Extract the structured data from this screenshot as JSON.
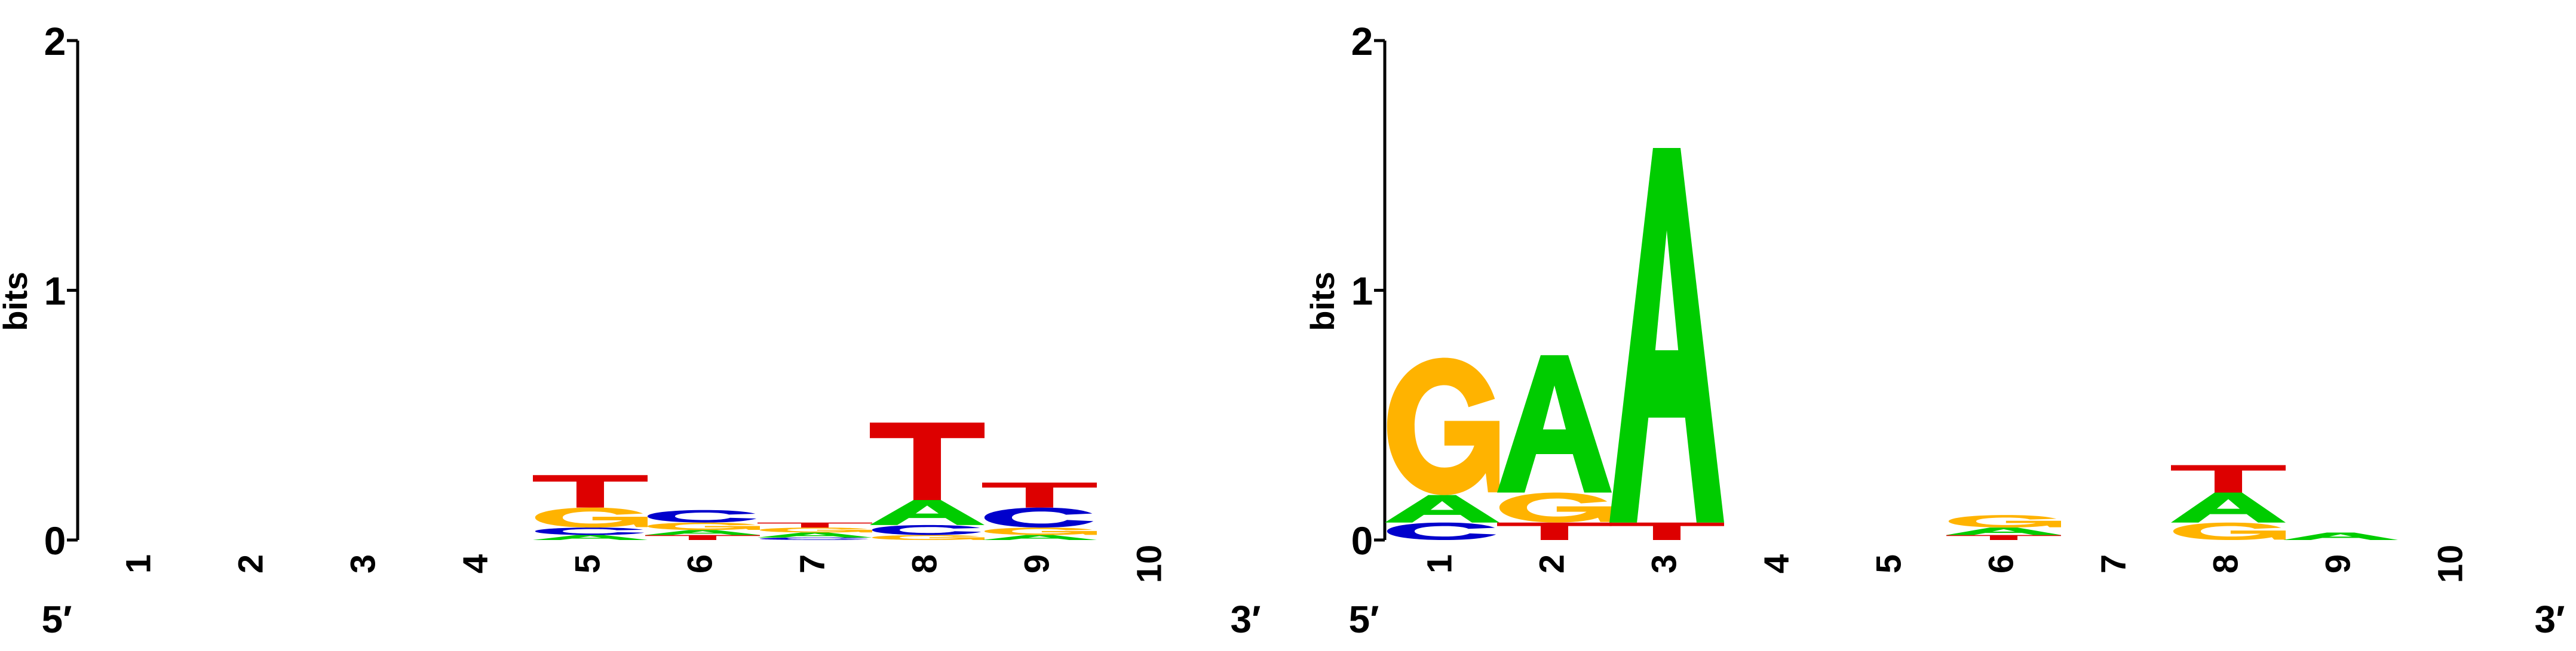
{
  "colors": {
    "A": "#00cc00",
    "C": "#0000cc",
    "G": "#ffb300",
    "T": "#dd0000"
  },
  "chart_data": [
    {
      "type": "sequence-logo",
      "ylabel": "bits",
      "ylim": [
        0,
        2
      ],
      "yticks": [
        "0",
        "1",
        "2"
      ],
      "xticks": [
        "1",
        "2",
        "3",
        "4",
        "5",
        "6",
        "7",
        "8",
        "9",
        "10"
      ],
      "end_labels": {
        "left": "5′",
        "right": "3′"
      },
      "positions": [
        {
          "pos": "1",
          "stack": []
        },
        {
          "pos": "2",
          "stack": []
        },
        {
          "pos": "3",
          "stack": []
        },
        {
          "pos": "4",
          "stack": []
        },
        {
          "pos": "5",
          "stack": [
            {
              "base": "A",
              "bits": 0.02
            },
            {
              "base": "C",
              "bits": 0.03
            },
            {
              "base": "G",
              "bits": 0.08
            },
            {
              "base": "T",
              "bits": 0.13
            }
          ]
        },
        {
          "pos": "6",
          "stack": [
            {
              "base": "T",
              "bits": 0.02
            },
            {
              "base": "A",
              "bits": 0.02
            },
            {
              "base": "G",
              "bits": 0.03
            },
            {
              "base": "C",
              "bits": 0.05
            }
          ]
        },
        {
          "pos": "7",
          "stack": [
            {
              "base": "C",
              "bits": 0.01
            },
            {
              "base": "A",
              "bits": 0.02
            },
            {
              "base": "G",
              "bits": 0.02
            },
            {
              "base": "T",
              "bits": 0.02
            }
          ]
        },
        {
          "pos": "8",
          "stack": [
            {
              "base": "G",
              "bits": 0.02
            },
            {
              "base": "C",
              "bits": 0.04
            },
            {
              "base": "A",
              "bits": 0.1
            },
            {
              "base": "T",
              "bits": 0.31
            }
          ]
        },
        {
          "pos": "9",
          "stack": [
            {
              "base": "A",
              "bits": 0.02
            },
            {
              "base": "G",
              "bits": 0.03
            },
            {
              "base": "C",
              "bits": 0.08
            },
            {
              "base": "T",
              "bits": 0.1
            }
          ]
        },
        {
          "pos": "10",
          "stack": []
        }
      ]
    },
    {
      "type": "sequence-logo",
      "ylabel": "bits",
      "ylim": [
        0,
        2
      ],
      "yticks": [
        "0",
        "1",
        "2"
      ],
      "xticks": [
        "1",
        "2",
        "3",
        "4",
        "5",
        "6",
        "7",
        "8",
        "9",
        "10"
      ],
      "end_labels": {
        "left": "5′",
        "right": "3′"
      },
      "positions": [
        {
          "pos": "1",
          "stack": [
            {
              "base": "C",
              "bits": 0.07
            },
            {
              "base": "A",
              "bits": 0.11
            },
            {
              "base": "G",
              "bits": 0.55
            }
          ]
        },
        {
          "pos": "2",
          "stack": [
            {
              "base": "T",
              "bits": 0.07
            },
            {
              "base": "G",
              "bits": 0.12
            },
            {
              "base": "A",
              "bits": 0.55
            }
          ]
        },
        {
          "pos": "3",
          "stack": [
            {
              "base": "T",
              "bits": 0.07
            },
            {
              "base": "A",
              "bits": 1.5
            }
          ]
        },
        {
          "pos": "4",
          "stack": []
        },
        {
          "pos": "5",
          "stack": []
        },
        {
          "pos": "6",
          "stack": [
            {
              "base": "T",
              "bits": 0.02
            },
            {
              "base": "A",
              "bits": 0.03
            },
            {
              "base": "G",
              "bits": 0.05
            }
          ]
        },
        {
          "pos": "7",
          "stack": []
        },
        {
          "pos": "8",
          "stack": [
            {
              "base": "G",
              "bits": 0.07
            },
            {
              "base": "A",
              "bits": 0.12
            },
            {
              "base": "T",
              "bits": 0.11
            }
          ]
        },
        {
          "pos": "9",
          "stack": [
            {
              "base": "A",
              "bits": 0.03
            }
          ]
        },
        {
          "pos": "10",
          "stack": []
        }
      ]
    }
  ]
}
